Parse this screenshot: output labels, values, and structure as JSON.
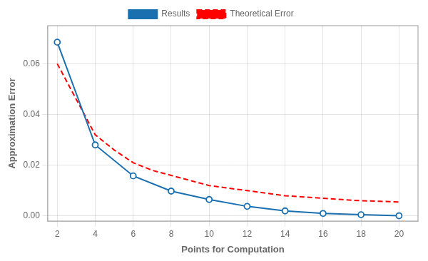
{
  "chart_data": {
    "type": "line",
    "xlabel": "Points for Computation",
    "ylabel": "Approximation Error",
    "series": [
      {
        "name": "Results",
        "color": "#1a6faf",
        "marker": "circle",
        "line_style": "solid",
        "x": [
          2,
          4,
          6,
          8,
          10,
          12,
          14,
          16,
          18,
          20
        ],
        "values": [
          0.0685,
          0.028,
          0.0158,
          0.0098,
          0.0065,
          0.0038,
          0.002,
          0.001,
          0.0005,
          0.0001
        ]
      },
      {
        "name": "Theoretical Error",
        "color": "#ff0000",
        "line_style": "dashed",
        "x": [
          2,
          3,
          4,
          5,
          6,
          7,
          8,
          9,
          10,
          11,
          12,
          13,
          14,
          15,
          16,
          17,
          18,
          19,
          20
        ],
        "values": [
          0.06,
          0.046,
          0.032,
          0.026,
          0.021,
          0.018,
          0.016,
          0.014,
          0.012,
          0.011,
          0.01,
          0.009,
          0.008,
          0.0075,
          0.007,
          0.0065,
          0.006,
          0.0058,
          0.0055
        ]
      }
    ],
    "xlim": [
      1.5,
      21
    ],
    "ylim": [
      -0.002,
      0.075
    ],
    "xticks": [
      2,
      4,
      6,
      8,
      10,
      12,
      14,
      16,
      18,
      20
    ],
    "yticks": [
      {
        "value": 0,
        "label": "0.00"
      },
      {
        "value": 0.02,
        "label": "0.02"
      },
      {
        "value": 0.04,
        "label": "0.04"
      },
      {
        "value": 0.06,
        "label": "0.06"
      }
    ],
    "grid": true,
    "legend": "top"
  }
}
